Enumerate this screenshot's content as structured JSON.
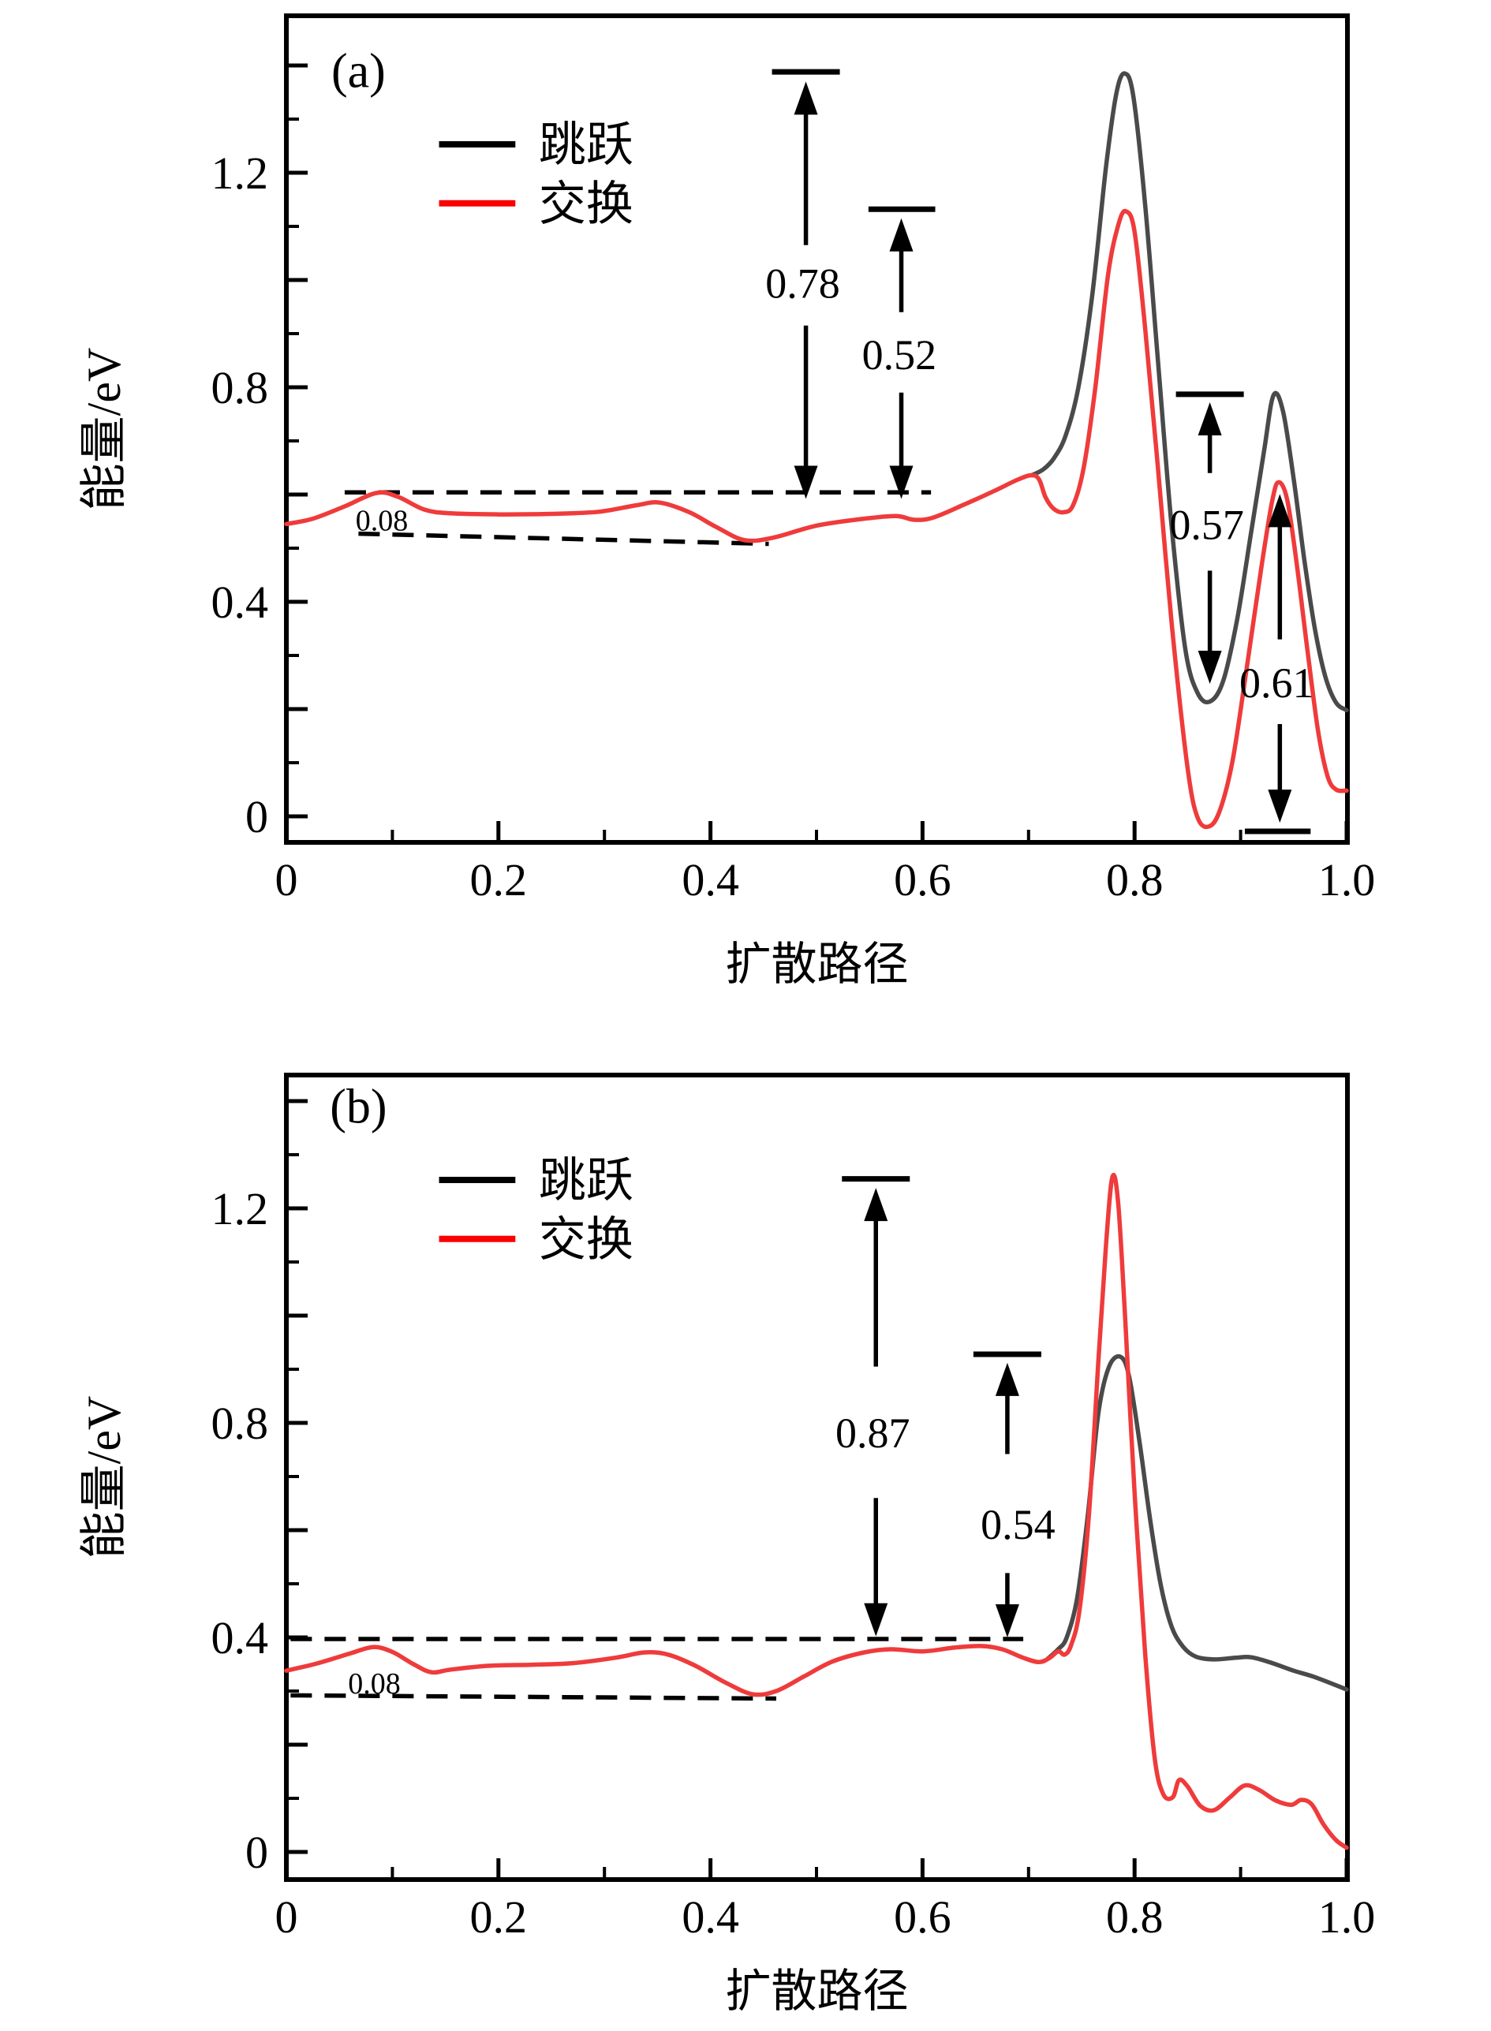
{
  "figure": {
    "description": "Two-panel energy profile figure (NEB diffusion barriers), panels (a) and (b)",
    "background": "#ffffff",
    "axis_color": "#000000",
    "hop_curve_color": "#4a4a4a",
    "exchange_curve_color": "#ef3b3b",
    "legend_black": "#000000",
    "legend_red": "#fa0000"
  },
  "chart_data": [
    {
      "type": "line",
      "panel": "a",
      "panel_label": "(a)",
      "panel_label_pos": [
        0.068,
        1.392
      ],
      "xlabel": "扩散路径",
      "ylabel": "能量/eV",
      "xlim": [
        0,
        1.0
      ],
      "ylim": [
        -0.049,
        1.492
      ],
      "x_tick_labels": [
        {
          "v": 0,
          "text": "0"
        },
        {
          "v": 0.2,
          "text": "0.2"
        },
        {
          "v": 0.4,
          "text": "0.4"
        },
        {
          "v": 0.6,
          "text": "0.6"
        },
        {
          "v": 0.8,
          "text": "0.8"
        },
        {
          "v": 1.0,
          "text": "1.0"
        }
      ],
      "x_minor_ticks": [
        0.1,
        0.3,
        0.5,
        0.7,
        0.9
      ],
      "x_long_ticks": [
        0.2,
        0.4,
        0.6,
        0.8,
        1.0
      ],
      "y_tick_labels": [
        {
          "v": 0,
          "text": "0"
        },
        {
          "v": 0.4,
          "text": "0.4"
        },
        {
          "v": 0.8,
          "text": "0.8"
        },
        {
          "v": 1.2,
          "text": "1.2"
        }
      ],
      "y_minor_ticks": [
        0.1,
        0.3,
        0.5,
        0.7,
        0.9,
        1.1,
        1.3
      ],
      "y_long_ticks": [
        0,
        0.2,
        0.4,
        0.6,
        0.8,
        1.0,
        1.2,
        1.4
      ],
      "legend": {
        "entries": [
          {
            "label": "跳跃",
            "color": "#000000",
            "v": 1.253
          },
          {
            "label": "交换",
            "color": "#fa0000",
            "v": 1.143
          }
        ],
        "swatch_x": [
          0.144,
          0.216
        ],
        "label_x": 0.238
      },
      "series": [
        {
          "name": "跳跃",
          "color": "#4a4a4a",
          "points": [
            [
              0.703,
              0.636
            ],
            [
              0.714,
              0.647
            ],
            [
              0.724,
              0.668
            ],
            [
              0.735,
              0.71
            ],
            [
              0.747,
              0.8
            ],
            [
              0.76,
              0.97
            ],
            [
              0.773,
              1.21
            ],
            [
              0.783,
              1.35
            ],
            [
              0.791,
              1.385
            ],
            [
              0.799,
              1.34
            ],
            [
              0.81,
              1.14
            ],
            [
              0.822,
              0.85
            ],
            [
              0.835,
              0.54
            ],
            [
              0.848,
              0.31
            ],
            [
              0.86,
              0.228
            ],
            [
              0.872,
              0.215
            ],
            [
              0.884,
              0.255
            ],
            [
              0.897,
              0.37
            ],
            [
              0.91,
              0.53
            ],
            [
              0.922,
              0.68
            ],
            [
              0.931,
              0.785
            ],
            [
              0.94,
              0.755
            ],
            [
              0.95,
              0.63
            ],
            [
              0.96,
              0.48
            ],
            [
              0.97,
              0.35
            ],
            [
              0.98,
              0.26
            ],
            [
              0.99,
              0.212
            ],
            [
              1.0,
              0.198
            ]
          ]
        },
        {
          "name": "交换",
          "color": "#ef3b3b",
          "points": [
            [
              0,
              0.545
            ],
            [
              0.025,
              0.555
            ],
            [
              0.055,
              0.578
            ],
            [
              0.085,
              0.603
            ],
            [
              0.105,
              0.596
            ],
            [
              0.13,
              0.572
            ],
            [
              0.155,
              0.565
            ],
            [
              0.2,
              0.563
            ],
            [
              0.25,
              0.564
            ],
            [
              0.295,
              0.568
            ],
            [
              0.33,
              0.58
            ],
            [
              0.352,
              0.585
            ],
            [
              0.38,
              0.567
            ],
            [
              0.405,
              0.54
            ],
            [
              0.432,
              0.515
            ],
            [
              0.46,
              0.52
            ],
            [
              0.5,
              0.542
            ],
            [
              0.545,
              0.555
            ],
            [
              0.575,
              0.56
            ],
            [
              0.592,
              0.553
            ],
            [
              0.61,
              0.557
            ],
            [
              0.64,
              0.582
            ],
            [
              0.668,
              0.607
            ],
            [
              0.69,
              0.628
            ],
            [
              0.703,
              0.636
            ],
            [
              0.71,
              0.628
            ],
            [
              0.716,
              0.595
            ],
            [
              0.724,
              0.573
            ],
            [
              0.733,
              0.567
            ],
            [
              0.742,
              0.58
            ],
            [
              0.752,
              0.65
            ],
            [
              0.763,
              0.8
            ],
            [
              0.775,
              1.01
            ],
            [
              0.785,
              1.105
            ],
            [
              0.792,
              1.128
            ],
            [
              0.8,
              1.09
            ],
            [
              0.81,
              0.91
            ],
            [
              0.822,
              0.65
            ],
            [
              0.835,
              0.36
            ],
            [
              0.85,
              0.09
            ],
            [
              0.86,
              -0.005
            ],
            [
              0.872,
              -0.017
            ],
            [
              0.882,
              0.02
            ],
            [
              0.893,
              0.11
            ],
            [
              0.906,
              0.28
            ],
            [
              0.92,
              0.47
            ],
            [
              0.93,
              0.59
            ],
            [
              0.936,
              0.623
            ],
            [
              0.944,
              0.59
            ],
            [
              0.953,
              0.47
            ],
            [
              0.963,
              0.31
            ],
            [
              0.973,
              0.16
            ],
            [
              0.982,
              0.075
            ],
            [
              0.99,
              0.05
            ],
            [
              1.0,
              0.048
            ]
          ]
        }
      ],
      "dashed_lines": [
        {
          "x1": 0.055,
          "v1": 0.604,
          "x2": 0.608,
          "v2": 0.604
        },
        {
          "x1": 0.068,
          "v1": 0.527,
          "x2": 0.455,
          "v2": 0.508
        }
      ],
      "gap_label": {
        "text": "0.08",
        "pos": [
          0.09,
          0.552
        ]
      },
      "annotations": [
        {
          "label": "0.78",
          "x": 0.49,
          "bar_top": {
            "v": 1.388,
            "x1": 0.458,
            "x2": 0.522
          },
          "up": {
            "from": 1.065,
            "tip": 1.37
          },
          "label_pos": [
            0.487,
            0.995
          ],
          "down": {
            "from": 0.915,
            "tip": 0.592
          }
        },
        {
          "label": "0.52",
          "x": 0.58,
          "bar_top": {
            "v": 1.132,
            "x1": 0.549,
            "x2": 0.612
          },
          "up": {
            "from": 0.94,
            "tip": 1.115
          },
          "label_pos": [
            0.578,
            0.862
          ],
          "down": {
            "from": 0.79,
            "tip": 0.592
          }
        },
        {
          "label": "0.57",
          "x": 0.871,
          "bar_top": {
            "v": 0.787,
            "x1": 0.839,
            "x2": 0.903
          },
          "up": {
            "from": 0.64,
            "tip": 0.772
          },
          "label_pos": [
            0.868,
            0.545
          ],
          "down": {
            "from": 0.458,
            "tip": 0.247
          }
        },
        {
          "label": "0.61",
          "x": 0.937,
          "bar_bottom": {
            "v": -0.028,
            "x1": 0.904,
            "x2": 0.966
          },
          "up": {
            "from": 0.33,
            "tip": 0.601
          },
          "label_pos": [
            0.934,
            0.25
          ],
          "down": {
            "from": 0.172,
            "tip": -0.012
          }
        }
      ]
    },
    {
      "type": "line",
      "panel": "b",
      "panel_label": "(b)",
      "panel_label_pos": [
        0.068,
        1.392
      ],
      "xlabel": "扩散路径",
      "ylabel": "能量/eV",
      "xlim": [
        0,
        1.0
      ],
      "ylim": [
        -0.051,
        1.449
      ],
      "x_tick_labels": [
        {
          "v": 0,
          "text": "0"
        },
        {
          "v": 0.2,
          "text": "0.2"
        },
        {
          "v": 0.4,
          "text": "0.4"
        },
        {
          "v": 0.6,
          "text": "0.6"
        },
        {
          "v": 0.8,
          "text": "0.8"
        },
        {
          "v": 1.0,
          "text": "1.0"
        }
      ],
      "x_minor_ticks": [
        0.1,
        0.3,
        0.5,
        0.7,
        0.9
      ],
      "x_long_ticks": [
        0.2,
        0.4,
        0.6,
        0.8,
        1.0
      ],
      "y_tick_labels": [
        {
          "v": 0,
          "text": "0"
        },
        {
          "v": 0.4,
          "text": "0.4"
        },
        {
          "v": 0.8,
          "text": "0.8"
        },
        {
          "v": 1.2,
          "text": "1.2"
        }
      ],
      "y_minor_ticks": [
        0.1,
        0.3,
        0.5,
        0.7,
        0.9,
        1.1,
        1.3
      ],
      "y_long_ticks": [
        0,
        0.2,
        0.4,
        0.6,
        0.8,
        1.0,
        1.2,
        1.4
      ],
      "legend": {
        "entries": [
          {
            "label": "跳跃",
            "color": "#000000",
            "v": 1.253
          },
          {
            "label": "交换",
            "color": "#fa0000",
            "v": 1.143
          }
        ],
        "swatch_x": [
          0.144,
          0.216
        ],
        "label_x": 0.238
      },
      "series": [
        {
          "name": "跳跃",
          "color": "#4a4a4a",
          "points": [
            [
              0.718,
              0.36
            ],
            [
              0.728,
              0.378
            ],
            [
              0.736,
              0.4
            ],
            [
              0.746,
              0.475
            ],
            [
              0.756,
              0.63
            ],
            [
              0.766,
              0.82
            ],
            [
              0.776,
              0.905
            ],
            [
              0.787,
              0.923
            ],
            [
              0.795,
              0.885
            ],
            [
              0.805,
              0.76
            ],
            [
              0.815,
              0.615
            ],
            [
              0.825,
              0.495
            ],
            [
              0.835,
              0.42
            ],
            [
              0.846,
              0.382
            ],
            [
              0.858,
              0.364
            ],
            [
              0.875,
              0.359
            ],
            [
              0.895,
              0.362
            ],
            [
              0.91,
              0.363
            ],
            [
              0.93,
              0.352
            ],
            [
              0.95,
              0.338
            ],
            [
              0.97,
              0.326
            ],
            [
              1.0,
              0.303
            ]
          ]
        },
        {
          "name": "交换",
          "color": "#ef3b3b",
          "points": [
            [
              0,
              0.338
            ],
            [
              0.03,
              0.352
            ],
            [
              0.06,
              0.37
            ],
            [
              0.082,
              0.382
            ],
            [
              0.1,
              0.373
            ],
            [
              0.12,
              0.35
            ],
            [
              0.137,
              0.335
            ],
            [
              0.155,
              0.34
            ],
            [
              0.19,
              0.347
            ],
            [
              0.23,
              0.349
            ],
            [
              0.27,
              0.352
            ],
            [
              0.31,
              0.362
            ],
            [
              0.338,
              0.372
            ],
            [
              0.36,
              0.368
            ],
            [
              0.385,
              0.348
            ],
            [
              0.415,
              0.315
            ],
            [
              0.44,
              0.294
            ],
            [
              0.462,
              0.3
            ],
            [
              0.488,
              0.327
            ],
            [
              0.515,
              0.355
            ],
            [
              0.545,
              0.372
            ],
            [
              0.57,
              0.378
            ],
            [
              0.6,
              0.374
            ],
            [
              0.63,
              0.381
            ],
            [
              0.655,
              0.384
            ],
            [
              0.675,
              0.378
            ],
            [
              0.695,
              0.362
            ],
            [
              0.71,
              0.354
            ],
            [
              0.72,
              0.362
            ],
            [
              0.728,
              0.374
            ],
            [
              0.734,
              0.368
            ],
            [
              0.74,
              0.385
            ],
            [
              0.748,
              0.45
            ],
            [
              0.757,
              0.63
            ],
            [
              0.766,
              0.92
            ],
            [
              0.773,
              1.13
            ],
            [
              0.779,
              1.258
            ],
            [
              0.7845,
              1.21
            ],
            [
              0.791,
              1.0
            ],
            [
              0.8,
              0.67
            ],
            [
              0.81,
              0.37
            ],
            [
              0.819,
              0.175
            ],
            [
              0.827,
              0.108
            ],
            [
              0.836,
              0.102
            ],
            [
              0.842,
              0.134
            ],
            [
              0.85,
              0.122
            ],
            [
              0.862,
              0.086
            ],
            [
              0.875,
              0.078
            ],
            [
              0.89,
              0.102
            ],
            [
              0.904,
              0.124
            ],
            [
              0.918,
              0.115
            ],
            [
              0.933,
              0.096
            ],
            [
              0.948,
              0.088
            ],
            [
              0.957,
              0.097
            ],
            [
              0.967,
              0.089
            ],
            [
              0.978,
              0.052
            ],
            [
              0.99,
              0.022
            ],
            [
              1.0,
              0.008
            ]
          ]
        }
      ],
      "dashed_lines": [
        {
          "x1": 0.004,
          "v1": 0.397,
          "x2": 0.695,
          "v2": 0.397
        },
        {
          "x1": 0.004,
          "v1": 0.292,
          "x2": 0.462,
          "v2": 0.286
        }
      ],
      "gap_label": {
        "text": "0.08",
        "pos": [
          0.083,
          0.315
        ]
      },
      "annotations": [
        {
          "label": "0.87",
          "x": 0.556,
          "bar_top": {
            "v": 1.255,
            "x1": 0.524,
            "x2": 0.588
          },
          "up": {
            "from": 0.905,
            "tip": 1.238
          },
          "label_pos": [
            0.553,
            0.782
          ],
          "down": {
            "from": 0.66,
            "tip": 0.402
          }
        },
        {
          "label": "0.54",
          "x": 0.68,
          "bar_top": {
            "v": 0.928,
            "x1": 0.648,
            "x2": 0.712
          },
          "up": {
            "from": 0.742,
            "tip": 0.912
          },
          "label_pos": [
            0.69,
            0.612
          ],
          "down": {
            "from": 0.52,
            "tip": 0.4
          }
        }
      ]
    }
  ]
}
